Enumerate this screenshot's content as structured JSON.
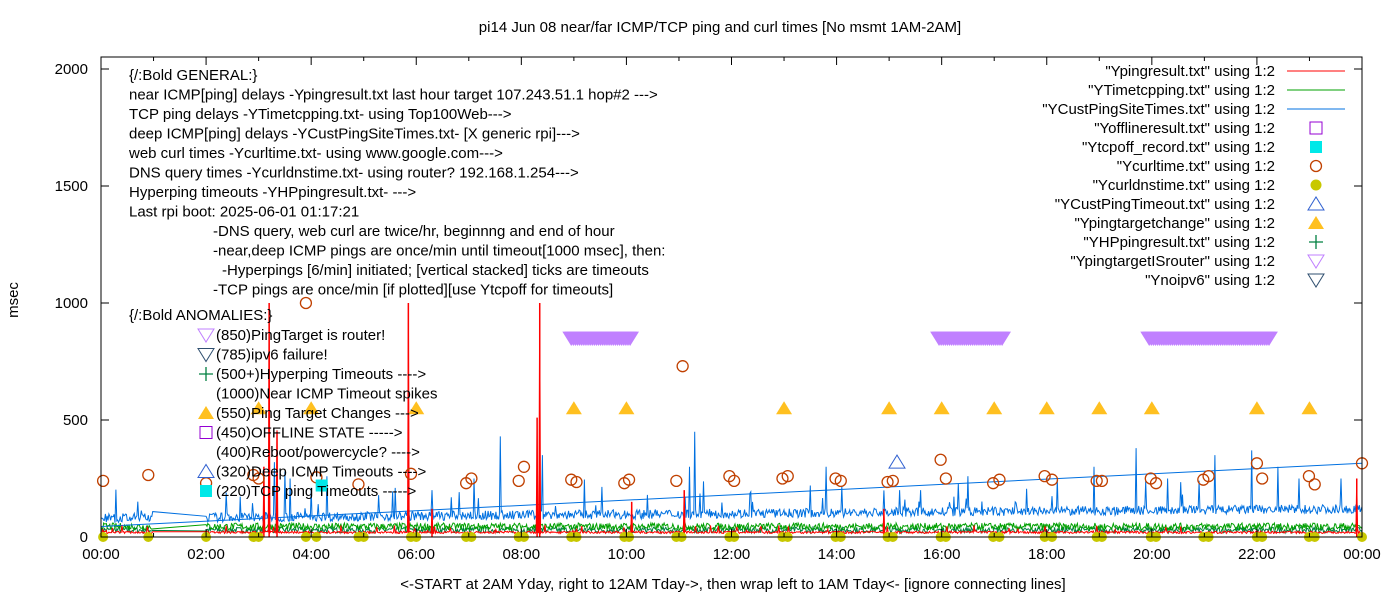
{
  "chart_data": {
    "type": "line",
    "title": "pi14 Jun 08  near/far ICMP/TCP ping and curl times [No msmt 1AM-2AM]",
    "xlabel": "<-START at 2AM Yday, right to 12AM Tday->, then wrap left to 1AM Tday<- [ignore connecting lines]",
    "ylabel": "msec",
    "xlim": [
      0,
      24
    ],
    "ylim": [
      0,
      2000
    ],
    "x_ticks": [
      "00:00",
      "02:00",
      "04:00",
      "06:00",
      "08:00",
      "10:00",
      "12:00",
      "14:00",
      "16:00",
      "18:00",
      "20:00",
      "22:00",
      "00:00"
    ],
    "y_ticks": [
      0,
      500,
      1000,
      1500,
      2000
    ],
    "annotations": {
      "general": [
        "{/:Bold GENERAL:}",
        "near ICMP[ping] delays -Ypingresult.txt last hour target 107.243.51.1 hop#2 --->",
        "TCP ping delays -YTimetcpping.txt- using Top100Web--->",
        "deep ICMP[ping] delays -YCustPingSiteTimes.txt- [X generic rpi]--->",
        "web curl times -Ycurltime.txt- using www.google.com--->",
        "DNS query times -Ycurldnstime.txt- using router? 192.168.1.254--->",
        "Hyperping timeouts -YHPpingresult.txt- --->",
        "Last rpi boot: 2025-06-01 01:17:21"
      ],
      "notes": [
        "-DNS query, web curl are twice/hr, beginnng and end of hour",
        "-near,deep ICMP pings are once/min until timeout[1000 msec], then:",
        "-Hyperpings [6/min] initiated; [vertical stacked] ticks are timeouts",
        "-TCP pings are once/min [if plotted][use Ytcpoff for timeouts]"
      ],
      "anomalies_title": "{/:Bold ANOMALIES:}",
      "anomalies": [
        {
          "text": "(850)PingTarget is router!",
          "icon": "triangle-down-icon",
          "color": "#c080ff"
        },
        {
          "text": "(785)ipv6 failure!",
          "icon": "triangle-down-icon",
          "color": "#2f4f6f"
        },
        {
          "text": "(500+)Hyperping Timeouts ---->",
          "icon": "plus-icon",
          "color": "#008040"
        },
        {
          "text": "(1000)Near ICMP Timeout spikes",
          "icon": "none",
          "color": ""
        },
        {
          "text": "(550)Ping Target Changes --->",
          "icon": "triangle-filled-icon",
          "color": "#ffc020"
        },
        {
          "text": "(450)OFFLINE STATE ----->",
          "icon": "square-open-icon",
          "color": "#9400d3"
        },
        {
          "text": "(400)Reboot/powercycle? ---->",
          "icon": "none",
          "color": ""
        },
        {
          "text": "(320)Deep ICMP Timeouts ---->",
          "icon": "triangle-up-icon",
          "color": "#3060d0"
        },
        {
          "text": "(220)TCP ping Timeouts ----->",
          "icon": "square-filled-icon",
          "color": "#00e8e8"
        }
      ]
    },
    "legend_position": "top-right",
    "legend": [
      {
        "label": "\"Ypingresult.txt\" using 1:2",
        "style": "line",
        "color": "#ff0000"
      },
      {
        "label": "\"YTimetcpping.txt\" using 1:2",
        "style": "line",
        "color": "#00a000"
      },
      {
        "label": "\"YCustPingSiteTimes.txt\" using 1:2",
        "style": "line",
        "color": "#0070e0"
      },
      {
        "label": "\"Yofflineresult.txt\" using 1:2",
        "style": "square-open",
        "color": "#9400d3"
      },
      {
        "label": "\"Ytcpoff_record.txt\" using 1:2",
        "style": "square-filled",
        "color": "#00e8e8"
      },
      {
        "label": "\"Ycurltime.txt\" using 1:2",
        "style": "circle-open",
        "color": "#c04000"
      },
      {
        "label": "\"Ycurldnstime.txt\" using 1:2",
        "style": "circle-filled",
        "color": "#c8c800"
      },
      {
        "label": "\"YCustPingTimeout.txt\" using 1:2",
        "style": "triangle-up",
        "color": "#3060d0"
      },
      {
        "label": "\"Ypingtargetchange\" using 1:2",
        "style": "triangle-filled",
        "color": "#ffc020"
      },
      {
        "label": "\"YHPpingresult.txt\" using 1:2",
        "style": "plus",
        "color": "#008040"
      },
      {
        "label": "\"YpingtargetISrouter\" using 1:2",
        "style": "triangle-down",
        "color": "#c080ff"
      },
      {
        "label": "\"Ynoipv6\" using 1:2",
        "style": "triangle-down",
        "color": "#2f4f6f"
      }
    ],
    "series": {
      "ypingresult": {
        "base": 20,
        "spikes": [
          [
            3.2,
            1000
          ],
          [
            3.35,
            450
          ],
          [
            5.85,
            1000
          ],
          [
            8.3,
            510
          ],
          [
            8.35,
            1000
          ],
          [
            3.1,
            300
          ],
          [
            6.3,
            120
          ],
          [
            10.1,
            150
          ],
          [
            11.1,
            200
          ],
          [
            14.9,
            120
          ],
          [
            23.9,
            250
          ]
        ]
      },
      "ytimetcpping": {
        "base": 45
      },
      "ycustpingsitetimes": {
        "trend": [
          [
            0,
            45
          ],
          [
            24,
            315
          ]
        ],
        "base": 50,
        "spikes": [
          [
            3.3,
            320
          ],
          [
            3.5,
            280
          ],
          [
            3.6,
            250
          ],
          [
            4.3,
            260
          ],
          [
            5.6,
            210
          ],
          [
            6.3,
            200
          ],
          [
            7.1,
            250
          ],
          [
            7.6,
            430
          ],
          [
            8.4,
            350
          ],
          [
            9.2,
            220
          ],
          [
            10.4,
            180
          ],
          [
            11.2,
            300
          ],
          [
            11.3,
            450
          ],
          [
            12.4,
            150
          ],
          [
            13.5,
            220
          ],
          [
            13.8,
            300
          ],
          [
            15.6,
            200
          ],
          [
            16.5,
            260
          ],
          [
            17.4,
            150
          ],
          [
            18.2,
            250
          ],
          [
            18.9,
            300
          ],
          [
            19.7,
            380
          ],
          [
            20.3,
            250
          ],
          [
            20.9,
            240
          ],
          [
            21.2,
            350
          ],
          [
            21.9,
            370
          ],
          [
            22.4,
            300
          ],
          [
            22.8,
            250
          ],
          [
            23.6,
            250
          ]
        ]
      },
      "ycurltime": [
        [
          0.04,
          240
        ],
        [
          0.9,
          265
        ],
        [
          2.0,
          230
        ],
        [
          2.9,
          265
        ],
        [
          3.0,
          250
        ],
        [
          3.9,
          1000
        ],
        [
          4.1,
          255
        ],
        [
          4.9,
          225
        ],
        [
          5.9,
          270
        ],
        [
          6.95,
          230
        ],
        [
          7.05,
          250
        ],
        [
          7.95,
          240
        ],
        [
          8.05,
          300
        ],
        [
          8.95,
          245
        ],
        [
          9.05,
          235
        ],
        [
          9.96,
          230
        ],
        [
          10.05,
          245
        ],
        [
          10.95,
          240
        ],
        [
          11.07,
          730
        ],
        [
          11.96,
          260
        ],
        [
          12.05,
          240
        ],
        [
          12.97,
          250
        ],
        [
          13.07,
          260
        ],
        [
          13.98,
          250
        ],
        [
          14.08,
          240
        ],
        [
          14.97,
          235
        ],
        [
          15.07,
          240
        ],
        [
          15.98,
          330
        ],
        [
          16.08,
          250
        ],
        [
          16.98,
          230
        ],
        [
          17.1,
          245
        ],
        [
          17.96,
          260
        ],
        [
          18.1,
          245
        ],
        [
          18.95,
          240
        ],
        [
          19.05,
          240
        ],
        [
          19.98,
          250
        ],
        [
          20.08,
          230
        ],
        [
          20.98,
          245
        ],
        [
          21.08,
          260
        ],
        [
          22.0,
          315
        ],
        [
          22.1,
          250
        ],
        [
          22.99,
          260
        ],
        [
          23.1,
          225
        ],
        [
          24.0,
          315
        ]
      ],
      "ycurldnstime": [
        0.04,
        0.9,
        2.0,
        2.9,
        3.0,
        3.9,
        4.1,
        4.9,
        5.0,
        5.9,
        6.0,
        6.95,
        7.05,
        7.95,
        8.05,
        8.95,
        9.05,
        9.96,
        10.05,
        10.95,
        11.05,
        11.96,
        12.05,
        12.97,
        13.07,
        13.98,
        14.08,
        14.97,
        15.07,
        15.98,
        16.08,
        16.98,
        17.1,
        17.96,
        18.1,
        18.95,
        19.05,
        19.98,
        20.08,
        20.98,
        21.08,
        22.0,
        22.1,
        22.99,
        23.1,
        24.0
      ],
      "ypingtargetchange": [
        [
          3.0,
          550
        ],
        [
          4.0,
          550
        ],
        [
          6.0,
          550
        ],
        [
          9.0,
          550
        ],
        [
          10.0,
          550
        ],
        [
          13.0,
          550
        ],
        [
          15.0,
          550
        ],
        [
          16.0,
          550
        ],
        [
          17.0,
          550
        ],
        [
          18.0,
          550
        ],
        [
          19.0,
          550
        ],
        [
          20.0,
          550
        ],
        [
          22.0,
          550
        ],
        [
          23.0,
          550
        ]
      ],
      "ycustpingtimeout": [
        [
          15.15,
          320
        ]
      ],
      "ytcpoff_record": [
        [
          4.2,
          220
        ]
      ],
      "ypingtargetisrouter_ranges": [
        [
          8.95,
          10.1,
          850
        ],
        [
          15.95,
          17.15,
          850
        ],
        [
          19.95,
          22.25,
          850
        ]
      ],
      "yhppingresult": {
        "base": 30
      }
    }
  }
}
